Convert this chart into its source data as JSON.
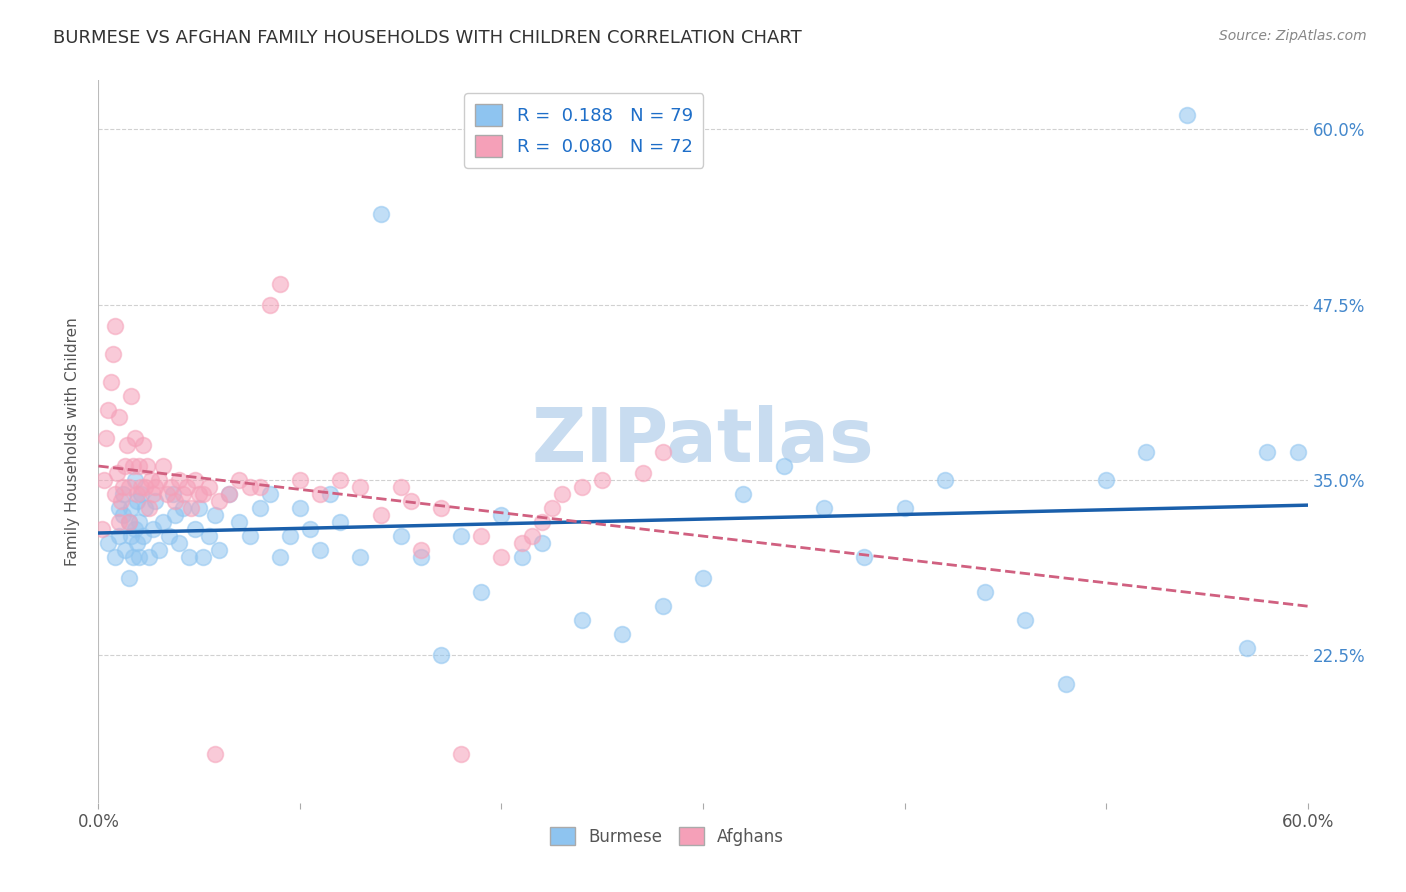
{
  "title": "BURMESE VS AFGHAN FAMILY HOUSEHOLDS WITH CHILDREN CORRELATION CHART",
  "source": "Source: ZipAtlas.com",
  "ylabel": "Family Households with Children",
  "xmin": 0.0,
  "xmax": 0.6,
  "ymin": 0.12,
  "ymax": 0.635,
  "yticks": [
    0.225,
    0.35,
    0.475,
    0.6
  ],
  "ytick_labels": [
    "22.5%",
    "35.0%",
    "47.5%",
    "60.0%"
  ],
  "xticks": [
    0.0,
    0.1,
    0.2,
    0.3,
    0.4,
    0.5,
    0.6
  ],
  "xtick_labels": [
    "0.0%",
    "",
    "",
    "",
    "",
    "",
    "60.0%"
  ],
  "burmese_R": 0.188,
  "burmese_N": 79,
  "afghan_R": 0.08,
  "afghan_N": 72,
  "burmese_color": "#8EC4F0",
  "afghan_color": "#F5A0B8",
  "burmese_line_color": "#1A5FAB",
  "afghan_line_color": "#D06080",
  "watermark": "ZIPatlas",
  "watermark_color": "#C8DCF0",
  "legend_label_burmese": "Burmese",
  "legend_label_afghan": "Afghans",
  "burmese_x": [
    0.005,
    0.008,
    0.01,
    0.01,
    0.012,
    0.012,
    0.013,
    0.015,
    0.015,
    0.016,
    0.016,
    0.017,
    0.018,
    0.018,
    0.019,
    0.019,
    0.02,
    0.02,
    0.021,
    0.022,
    0.023,
    0.025,
    0.027,
    0.028,
    0.03,
    0.032,
    0.035,
    0.037,
    0.038,
    0.04,
    0.042,
    0.045,
    0.048,
    0.05,
    0.052,
    0.055,
    0.058,
    0.06,
    0.065,
    0.07,
    0.075,
    0.08,
    0.085,
    0.09,
    0.095,
    0.1,
    0.105,
    0.11,
    0.115,
    0.12,
    0.13,
    0.14,
    0.15,
    0.16,
    0.17,
    0.18,
    0.19,
    0.2,
    0.21,
    0.22,
    0.24,
    0.26,
    0.28,
    0.3,
    0.32,
    0.34,
    0.36,
    0.38,
    0.4,
    0.42,
    0.44,
    0.46,
    0.48,
    0.5,
    0.52,
    0.54,
    0.57,
    0.58,
    0.595
  ],
  "burmese_y": [
    0.305,
    0.295,
    0.31,
    0.33,
    0.34,
    0.325,
    0.3,
    0.28,
    0.32,
    0.31,
    0.33,
    0.295,
    0.315,
    0.35,
    0.305,
    0.335,
    0.295,
    0.32,
    0.34,
    0.31,
    0.33,
    0.295,
    0.315,
    0.335,
    0.3,
    0.32,
    0.31,
    0.34,
    0.325,
    0.305,
    0.33,
    0.295,
    0.315,
    0.33,
    0.295,
    0.31,
    0.325,
    0.3,
    0.34,
    0.32,
    0.31,
    0.33,
    0.34,
    0.295,
    0.31,
    0.33,
    0.315,
    0.3,
    0.34,
    0.32,
    0.295,
    0.54,
    0.31,
    0.295,
    0.225,
    0.31,
    0.27,
    0.325,
    0.295,
    0.305,
    0.25,
    0.24,
    0.26,
    0.28,
    0.34,
    0.36,
    0.33,
    0.295,
    0.33,
    0.35,
    0.27,
    0.25,
    0.205,
    0.35,
    0.37,
    0.61,
    0.23,
    0.37,
    0.37
  ],
  "afghan_x": [
    0.002,
    0.003,
    0.004,
    0.005,
    0.006,
    0.007,
    0.008,
    0.008,
    0.009,
    0.01,
    0.01,
    0.011,
    0.012,
    0.013,
    0.014,
    0.015,
    0.015,
    0.016,
    0.017,
    0.018,
    0.019,
    0.02,
    0.021,
    0.022,
    0.023,
    0.024,
    0.025,
    0.026,
    0.027,
    0.028,
    0.03,
    0.032,
    0.034,
    0.036,
    0.038,
    0.04,
    0.042,
    0.044,
    0.046,
    0.048,
    0.05,
    0.052,
    0.055,
    0.058,
    0.06,
    0.065,
    0.07,
    0.075,
    0.08,
    0.085,
    0.09,
    0.1,
    0.11,
    0.12,
    0.13,
    0.14,
    0.15,
    0.155,
    0.16,
    0.17,
    0.18,
    0.19,
    0.2,
    0.21,
    0.215,
    0.22,
    0.225,
    0.23,
    0.24,
    0.25,
    0.27,
    0.28
  ],
  "afghan_y": [
    0.315,
    0.35,
    0.38,
    0.4,
    0.42,
    0.44,
    0.46,
    0.34,
    0.355,
    0.32,
    0.395,
    0.335,
    0.345,
    0.36,
    0.375,
    0.32,
    0.345,
    0.41,
    0.36,
    0.38,
    0.34,
    0.36,
    0.345,
    0.375,
    0.345,
    0.36,
    0.33,
    0.35,
    0.34,
    0.345,
    0.35,
    0.36,
    0.34,
    0.345,
    0.335,
    0.35,
    0.34,
    0.345,
    0.33,
    0.35,
    0.34,
    0.34,
    0.345,
    0.155,
    0.335,
    0.34,
    0.35,
    0.345,
    0.345,
    0.475,
    0.49,
    0.35,
    0.34,
    0.35,
    0.345,
    0.325,
    0.345,
    0.335,
    0.3,
    0.33,
    0.155,
    0.31,
    0.295,
    0.305,
    0.31,
    0.32,
    0.33,
    0.34,
    0.345,
    0.35,
    0.355,
    0.37
  ]
}
